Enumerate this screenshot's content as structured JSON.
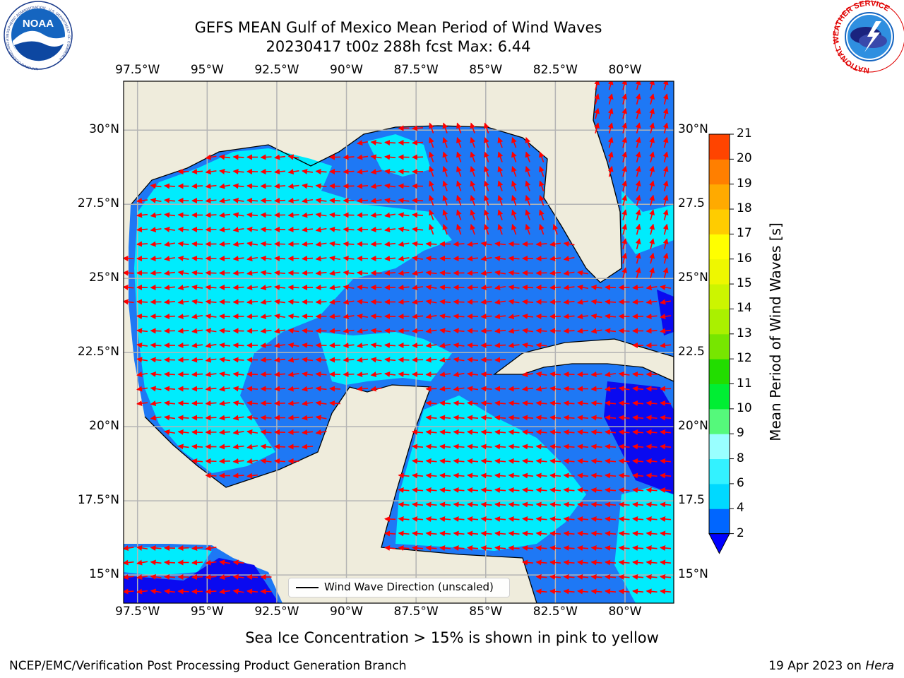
{
  "title": {
    "line1": "GEFS MEAN Gulf of Mexico Mean Period of Wind Waves",
    "line2": "20230417 t00z 288h fcst   Max: 6.44"
  },
  "logos": {
    "left": "NOAA",
    "left_ring_text": "NATIONAL OCEANIC AND ATMOSPHERIC ADMINISTRATION · U.S. DEPARTMENT OF COMMERCE",
    "right_ring_text": "NATIONAL WEATHER SERVICE"
  },
  "map": {
    "lon_ticks": [
      "97.5°W",
      "95°W",
      "92.5°W",
      "90°W",
      "87.5°W",
      "85°W",
      "82.5°W",
      "80°W"
    ],
    "lat_ticks_left": [
      "30°N",
      "27.5°N",
      "25°N",
      "22.5°N",
      "20°N",
      "17.5°N",
      "15°N"
    ],
    "lat_ticks_right": [
      "30°N",
      "27.5",
      "25°N",
      "22.5",
      "20°N",
      "17.5",
      "15°N"
    ],
    "lon_range": [
      -98,
      -78.25
    ],
    "lat_range": [
      14.05,
      31.65
    ],
    "land_color": "#efecdc",
    "arrow_color": "#ff0000",
    "legend": {
      "label": "Wind Wave Direction (unscaled)"
    }
  },
  "colorbar": {
    "label": "Mean Period of Wind Waves [s]",
    "ticks": [
      "2",
      "4",
      "6",
      "8",
      "9",
      "10",
      "11",
      "12",
      "13",
      "14",
      "15",
      "16",
      "17",
      "18",
      "19",
      "20",
      "21"
    ],
    "colors": [
      "#0066ff",
      "#00d9ff",
      "#33f2ff",
      "#99ffff",
      "#55f97b",
      "#00ee33",
      "#22dd00",
      "#77e600",
      "#aaf000",
      "#ccf500",
      "#eef700",
      "#ffff00",
      "#ffcc00",
      "#ffaa00",
      "#ff7f00",
      "#ff4400",
      "#ff0000"
    ],
    "extend_color": "#0000ff"
  },
  "notes": {
    "sea_ice": "Sea Ice Concentration > 15% is shown in pink to yellow",
    "footer_left": "NCEP/EMC/Verification Post Processing Product Generation Branch",
    "footer_right_date": "19 Apr 2023 on ",
    "footer_right_host": "Hera"
  }
}
